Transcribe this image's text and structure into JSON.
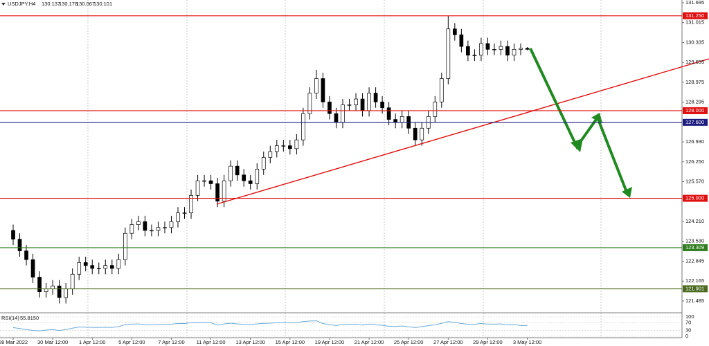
{
  "chart_data": {
    "type": "candlestick",
    "symbol": "USDJPY,H4",
    "categories": [
      "28 Mar 2022",
      null,
      null,
      null,
      null,
      null,
      "30 Mar 12:00",
      null,
      null,
      null,
      null,
      null,
      "1 Apr 12:00",
      null,
      null,
      null,
      null,
      null,
      "5 Apr 12:00",
      null,
      null,
      null,
      null,
      null,
      "7 Apr 12:00",
      null,
      null,
      null,
      null,
      null,
      "11 Apr 12:00",
      null,
      null,
      null,
      null,
      null,
      "13 Apr 12:00",
      null,
      null,
      null,
      null,
      null,
      "15 Apr 12:00",
      null,
      null,
      null,
      null,
      null,
      "19 Apr 12:00",
      null,
      null,
      null,
      null,
      null,
      "21 Apr 12:00",
      null,
      null,
      null,
      null,
      null,
      "25 Apr 12:00",
      null,
      null,
      null,
      null,
      null,
      "27 Apr 12:00",
      null,
      null,
      null,
      null,
      null,
      "29 Apr 12:00",
      null,
      null,
      null,
      null,
      null,
      "3 May 12:00"
    ],
    "open": [
      123.9,
      123.6,
      123.2,
      122.9,
      122.3,
      121.8,
      121.9,
      122.0,
      121.6,
      121.9,
      122.4,
      122.8,
      122.7,
      122.6,
      122.6,
      122.7,
      122.6,
      122.9,
      123.8,
      124.1,
      124.2,
      123.9,
      123.9,
      124.0,
      124.0,
      124.2,
      124.5,
      124.5,
      125.1,
      125.6,
      125.6,
      125.5,
      124.9,
      125.6,
      126.1,
      125.8,
      125.6,
      125.5,
      126.0,
      126.4,
      126.6,
      126.8,
      126.8,
      126.7,
      127.0,
      127.9,
      128.6,
      129.1,
      128.3,
      127.9,
      127.6,
      128.2,
      128.2,
      128.4,
      128.0,
      128.6,
      128.3,
      128.1,
      127.7,
      127.6,
      127.8,
      127.4,
      127.0,
      127.4,
      127.8,
      128.3,
      129.1,
      130.8,
      130.6,
      130.2,
      129.9,
      129.9,
      130.3,
      130.1,
      130.1,
      130.2,
      129.9,
      130.1,
      130.137
    ],
    "high": [
      124.1,
      123.8,
      123.4,
      123.1,
      122.5,
      122.1,
      122.2,
      122.2,
      122.1,
      122.6,
      123.0,
      123.0,
      122.9,
      122.8,
      122.9,
      122.9,
      123.1,
      124.0,
      124.3,
      124.4,
      124.4,
      124.1,
      124.2,
      124.2,
      124.4,
      124.7,
      124.7,
      125.3,
      125.8,
      125.8,
      125.8,
      125.7,
      125.8,
      126.3,
      126.3,
      126.0,
      125.8,
      126.2,
      126.6,
      126.8,
      127.0,
      127.0,
      127.0,
      127.2,
      128.1,
      128.8,
      129.4,
      129.3,
      128.5,
      128.1,
      128.4,
      128.4,
      128.6,
      128.6,
      128.8,
      128.8,
      128.5,
      128.3,
      127.9,
      128.0,
      128.0,
      127.6,
      127.6,
      128.0,
      128.5,
      129.3,
      131.25,
      131.0,
      130.8,
      130.4,
      130.1,
      130.5,
      130.5,
      130.3,
      130.4,
      130.4,
      130.3,
      130.3,
      130.178
    ],
    "low": [
      123.4,
      123.0,
      122.7,
      122.1,
      121.6,
      121.6,
      121.7,
      121.4,
      121.4,
      121.7,
      122.2,
      122.5,
      122.4,
      122.4,
      122.4,
      122.4,
      122.4,
      122.7,
      123.6,
      123.9,
      123.7,
      123.7,
      123.7,
      123.8,
      123.8,
      124.0,
      124.3,
      124.3,
      124.9,
      125.4,
      125.3,
      124.7,
      124.7,
      125.4,
      125.6,
      125.4,
      125.3,
      125.3,
      125.8,
      126.2,
      126.4,
      126.6,
      126.5,
      126.5,
      126.8,
      127.7,
      128.4,
      128.1,
      127.7,
      127.4,
      127.4,
      128.0,
      128.0,
      127.8,
      127.8,
      128.1,
      127.9,
      127.5,
      127.4,
      127.4,
      127.2,
      126.8,
      126.8,
      127.2,
      127.6,
      128.1,
      128.9,
      130.4,
      130.0,
      129.7,
      129.7,
      129.7,
      129.9,
      129.9,
      129.9,
      129.7,
      129.7,
      129.9,
      130.067
    ],
    "close": [
      123.6,
      123.2,
      122.9,
      122.3,
      121.8,
      121.9,
      122.0,
      121.6,
      121.9,
      122.4,
      122.8,
      122.7,
      122.6,
      122.6,
      122.7,
      122.6,
      122.9,
      123.8,
      124.1,
      124.2,
      123.9,
      123.9,
      124.0,
      124.0,
      124.2,
      124.5,
      124.5,
      125.1,
      125.6,
      125.6,
      125.5,
      124.9,
      125.6,
      126.1,
      125.8,
      125.6,
      125.5,
      126.0,
      126.4,
      126.6,
      126.8,
      126.8,
      126.7,
      127.0,
      127.9,
      128.6,
      129.1,
      128.3,
      127.9,
      127.6,
      128.2,
      128.2,
      128.4,
      128.0,
      128.6,
      128.3,
      128.1,
      127.7,
      127.6,
      127.8,
      127.4,
      127.0,
      127.4,
      127.8,
      128.3,
      129.1,
      130.8,
      130.6,
      130.2,
      129.9,
      129.9,
      130.3,
      130.1,
      130.1,
      130.2,
      129.9,
      130.1,
      130.137,
      130.101
    ],
    "ylim": [
      121.08,
      131.79
    ],
    "yticks": [
      131.695,
      131.015,
      130.335,
      129.655,
      128.975,
      128.295,
      {
        "value": 126.93,
        "label": "126.930"
      },
      {
        "value": 126.25,
        "label": "126.250"
      },
      {
        "value": 125.57,
        "label": "125.570"
      },
      {
        "value": 124.21,
        "label": "124.210"
      },
      {
        "value": 123.53,
        "label": "123.530"
      },
      122.845,
      122.165,
      121.485
    ],
    "levels": [
      {
        "value": 131.25,
        "label": "131.250",
        "color": "#e01010"
      },
      {
        "value": 128,
        "label": "128.000",
        "color": "#e01010"
      },
      {
        "value": 127.6,
        "label": "127.600",
        "color": "#1c1c80"
      },
      {
        "value": 125,
        "label": "125.000",
        "color": "#e01010"
      },
      {
        "value": 123.309,
        "label": "123.309",
        "color": "#2f7d1f"
      },
      {
        "value": 121.901,
        "label": "121.901",
        "color": "#4d6b20"
      }
    ],
    "indicator": {
      "name": "RSI(14)",
      "last": {
        "value": 55.815,
        "label": "55.8150"
      },
      "color": "#6aa9d8",
      "ylim": [
        0,
        100
      ],
      "yticks": [
        100,
        70,
        30,
        0
      ],
      "values": [
        45,
        40,
        35,
        30,
        28,
        32,
        35,
        30,
        35,
        42,
        48,
        47,
        46,
        46,
        47,
        46,
        50,
        60,
        63,
        64,
        60,
        60,
        61,
        61,
        63,
        66,
        66,
        70,
        72,
        72,
        70,
        58,
        64,
        68,
        64,
        62,
        61,
        64,
        67,
        68,
        70,
        70,
        69,
        71,
        76,
        79,
        80,
        66,
        60,
        56,
        61,
        61,
        63,
        58,
        63,
        59,
        57,
        52,
        51,
        53,
        49,
        45,
        50,
        55,
        60,
        67,
        76,
        72,
        66,
        62,
        62,
        66,
        63,
        63,
        64,
        59,
        61,
        56,
        55.815
      ]
    }
  }
}
